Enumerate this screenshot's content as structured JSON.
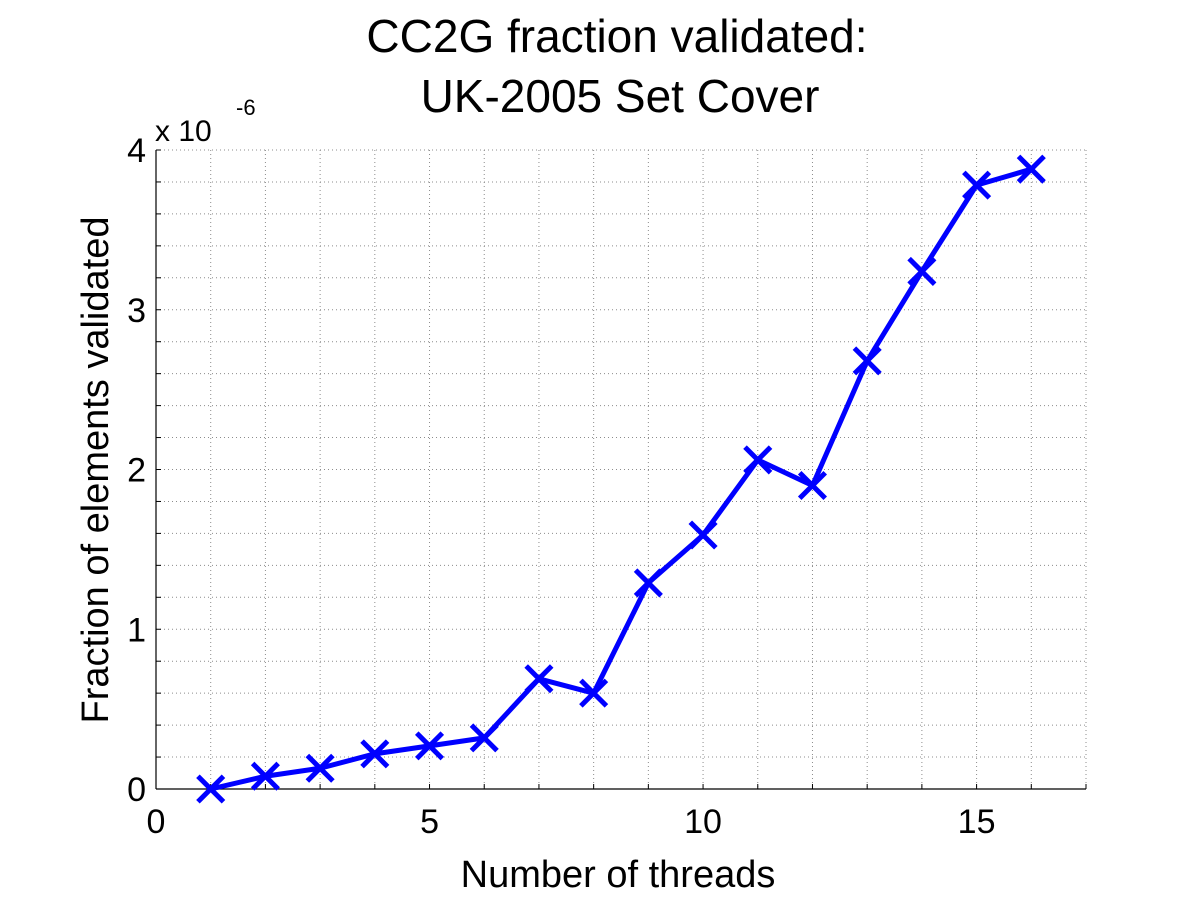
{
  "chart_data": {
    "type": "line",
    "title": [
      "CC2G fraction validated:",
      "UK-2005 Set Cover"
    ],
    "xlabel": "Number of threads",
    "ylabel": "Fraction of elements validated",
    "y_scale_prefix": "x 10",
    "y_scale_exponent": "-6",
    "xlim": [
      0,
      17
    ],
    "ylim": [
      0,
      4
    ],
    "xticks": [
      0,
      5,
      10,
      15
    ],
    "yticks": [
      0,
      1,
      2,
      3,
      4
    ],
    "grid": true,
    "grid_minor": true,
    "series": [
      {
        "color": "#0000ff",
        "marker": "x",
        "x": [
          1,
          2,
          3,
          4,
          5,
          6,
          7,
          8,
          9,
          10,
          11,
          12,
          13,
          14,
          15,
          16
        ],
        "y": [
          0.0,
          0.08,
          0.13,
          0.22,
          0.27,
          0.32,
          0.69,
          0.6,
          1.29,
          1.59,
          2.06,
          1.9,
          2.68,
          3.24,
          3.78,
          3.88
        ]
      }
    ]
  }
}
